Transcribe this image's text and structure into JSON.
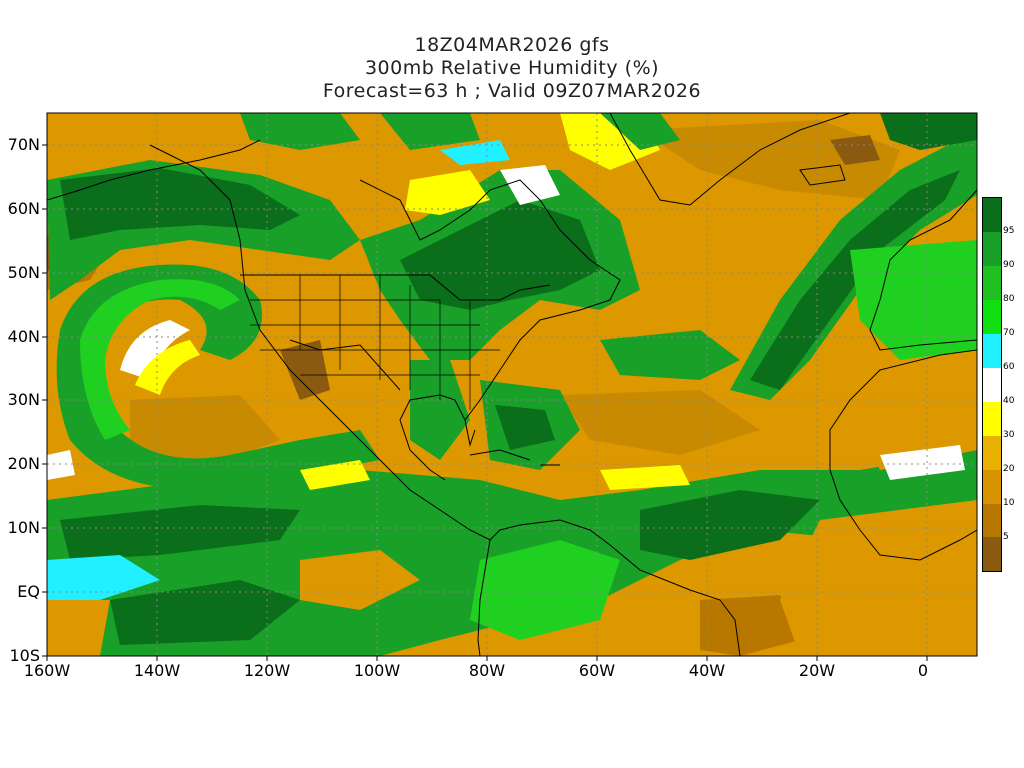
{
  "titles": {
    "line1": "18Z04MAR2026 gfs",
    "line2": "300mb Relative Humidity (%)",
    "line3": "Forecast=63 h ; Valid 09Z07MAR2026"
  },
  "axes": {
    "lat_labels": [
      "70N",
      "60N",
      "50N",
      "40N",
      "30N",
      "20N",
      "10N",
      "EQ",
      "10S"
    ],
    "lon_labels": [
      "160W",
      "140W",
      "120W",
      "100W",
      "80W",
      "60W",
      "40W",
      "20W",
      "0"
    ]
  },
  "colorbar": {
    "labels": [
      "95",
      "90",
      "80",
      "70",
      "60",
      "40",
      "30",
      "20",
      "10",
      "5"
    ],
    "colors": [
      "#0a6e1a",
      "#18a028",
      "#20c020",
      "#10e010",
      "#20f0ff",
      "#ffffff",
      "#ffff00",
      "#e8b000",
      "#d89400",
      "#b87800",
      "#8a5a10"
    ]
  },
  "palette": {
    "land_line": "#000000",
    "dark_green": "#0a6e1a",
    "green": "#18a028",
    "light_green": "#20d020",
    "cyan": "#20f0ff",
    "white": "#ffffff",
    "yellow": "#ffff00",
    "orange": "#dd9800",
    "dark_orange": "#b87800",
    "brown": "#8a5a10"
  }
}
